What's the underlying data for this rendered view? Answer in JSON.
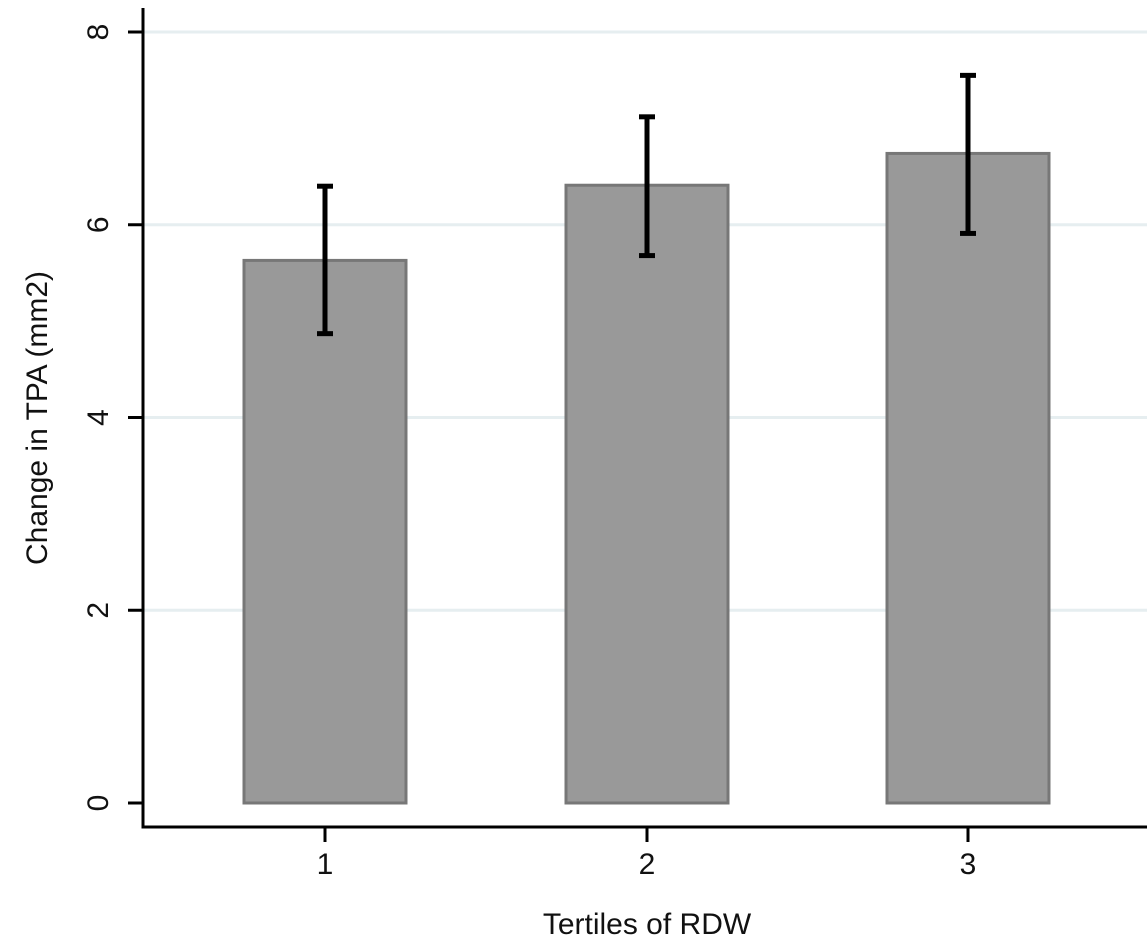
{
  "chart_data": {
    "type": "bar",
    "title": "",
    "xlabel": "Tertiles of RDW",
    "ylabel": "Change in TPA (mm2)",
    "categories": [
      "1",
      "2",
      "3"
    ],
    "values": [
      5.63,
      6.41,
      6.74
    ],
    "error_bars": {
      "lower": [
        4.87,
        5.68,
        5.91
      ],
      "upper": [
        6.4,
        7.12,
        7.55
      ]
    },
    "ylim": [
      0,
      8
    ],
    "yticks": [
      0,
      2,
      4,
      6,
      8
    ],
    "grid": true,
    "legend": "none",
    "colors": {
      "bar_fill": "#999999",
      "bar_stroke": "#777777",
      "error_bar": "#000000",
      "grid": "#e6eef0",
      "axis": "#000000"
    }
  }
}
